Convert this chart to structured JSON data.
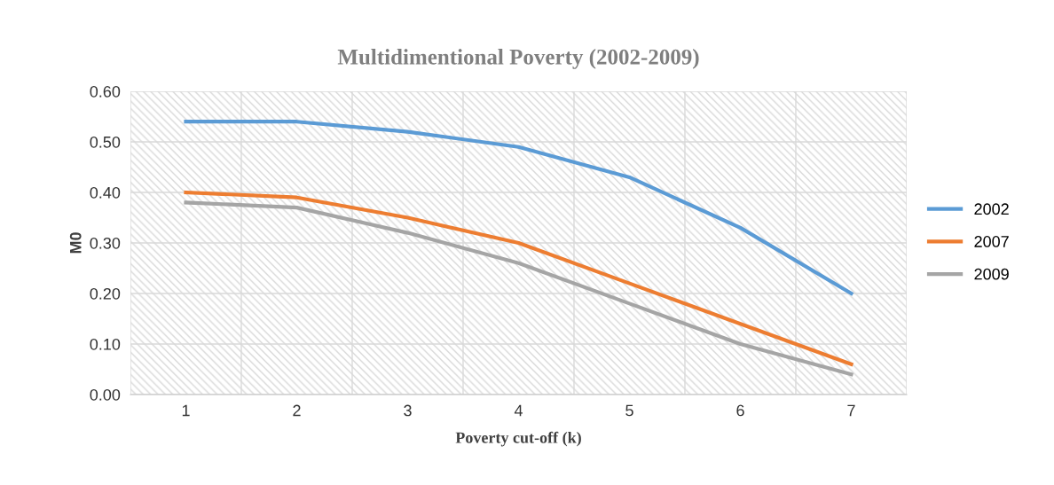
{
  "chart_data": {
    "type": "line",
    "title": "Multidimentional Poverty (2002-2009)",
    "xlabel": "Poverty cut-off (k)",
    "ylabel": "M0",
    "categories": [
      "1",
      "2",
      "3",
      "4",
      "5",
      "6",
      "7"
    ],
    "series": [
      {
        "name": "2002",
        "color": "#5b9bd5",
        "values": [
          0.54,
          0.54,
          0.52,
          0.49,
          0.43,
          0.33,
          0.2
        ]
      },
      {
        "name": "2007",
        "color": "#ed7d31",
        "values": [
          0.4,
          0.39,
          0.35,
          0.3,
          0.22,
          0.14,
          0.06
        ]
      },
      {
        "name": "2009",
        "color": "#a5a5a5",
        "values": [
          0.38,
          0.37,
          0.32,
          0.26,
          0.18,
          0.1,
          0.04
        ]
      }
    ],
    "ylim": [
      0,
      0.6
    ],
    "yticks": [
      {
        "value": 0,
        "label": "0.00"
      },
      {
        "value": 0.1,
        "label": "0.10"
      },
      {
        "value": 0.2,
        "label": "0.20"
      },
      {
        "value": 0.3,
        "label": "0.30"
      },
      {
        "value": 0.4,
        "label": "0.40"
      },
      {
        "value": 0.5,
        "label": "0.50"
      },
      {
        "value": 0.6,
        "label": "0.60"
      }
    ],
    "grid": true,
    "legend": "right",
    "marker": "none",
    "line_style": "solid"
  }
}
